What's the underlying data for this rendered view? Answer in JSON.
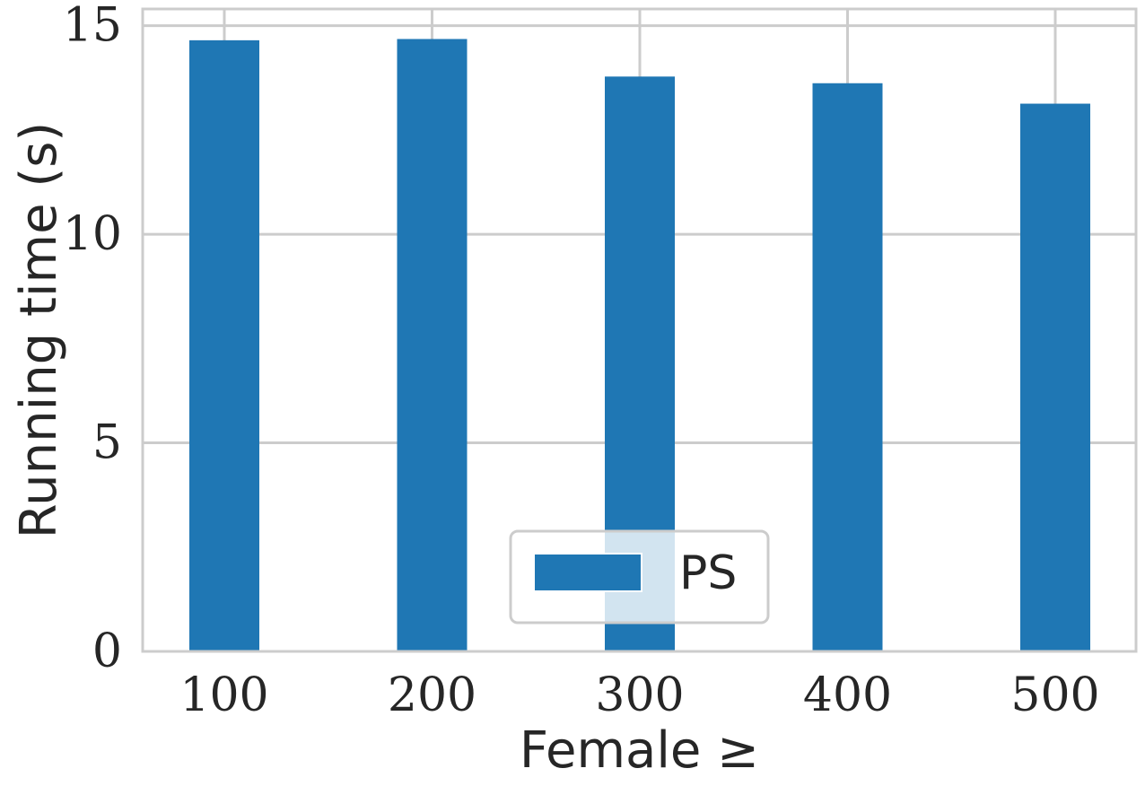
{
  "chart_data": {
    "type": "bar",
    "categories": [
      "100",
      "200",
      "300",
      "400",
      "500"
    ],
    "series": [
      {
        "name": "PS",
        "values": [
          14.65,
          14.68,
          13.78,
          13.62,
          13.13
        ],
        "color": "#1f77b4"
      }
    ],
    "xlabel": "Female ≥",
    "ylabel": "Running time (s)",
    "ylim": [
      0,
      15.4
    ],
    "yticks": [
      0,
      5,
      10,
      15
    ],
    "grid": true,
    "legend": {
      "placement": "lower-center",
      "entries": [
        "PS"
      ]
    }
  }
}
